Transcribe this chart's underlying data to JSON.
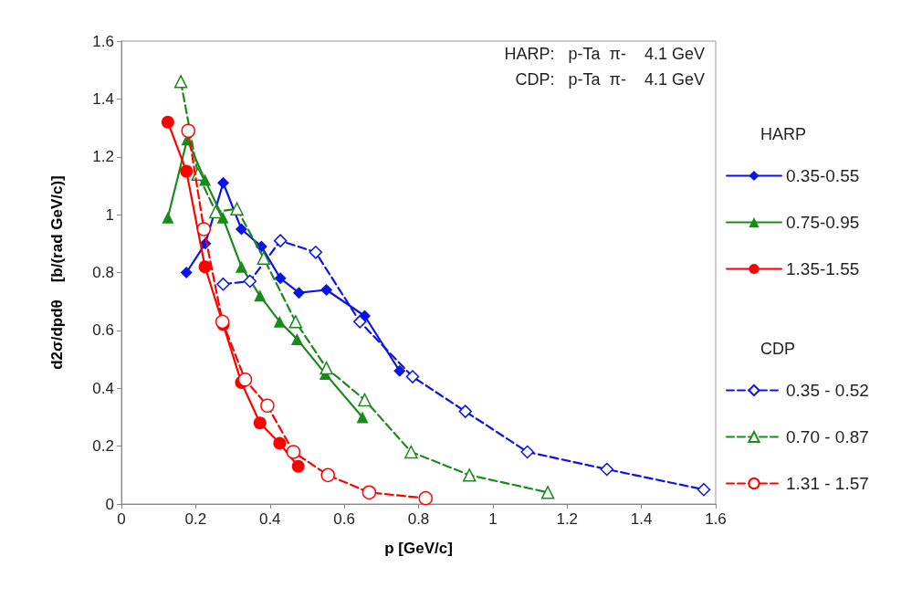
{
  "chart_data": {
    "type": "line",
    "xlabel": "p [GeV/c]",
    "ylabel": "d2σ/dpdθ    [b/(rad GeV/c)]",
    "annotations": [
      "HARP:   p-Ta  π-    4.1 GeV",
      "CDP:   p-Ta  π-    4.1 GeV",
      "HARP",
      "CDP"
    ],
    "xlim": [
      0,
      1.6
    ],
    "xticks": [
      0,
      0.2,
      0.4,
      0.6,
      0.8,
      1,
      1.2,
      1.4,
      1.6
    ],
    "ylim": [
      0,
      1.6
    ],
    "yticks": [
      0,
      0.2,
      0.4,
      0.6,
      0.8,
      1,
      1.2,
      1.4,
      1.6
    ],
    "grid": false,
    "legend": "right",
    "series": [
      {
        "name": "0.35-0.55",
        "color": "#0a14e6",
        "marker": "diamond",
        "line_style": "solid",
        "x": [
          0.175,
          0.226,
          0.274,
          0.323,
          0.377,
          0.428,
          0.478,
          0.552,
          0.655,
          0.749
        ],
        "values": [
          0.8,
          0.9,
          1.11,
          0.95,
          0.89,
          0.78,
          0.73,
          0.74,
          0.65,
          0.46
        ]
      },
      {
        "name": "0.75-0.95",
        "color": "#1a8a1a",
        "marker": "triangle",
        "line_style": "solid",
        "x": [
          0.125,
          0.177,
          0.225,
          0.273,
          0.323,
          0.373,
          0.426,
          0.473,
          0.549,
          0.649
        ],
        "values": [
          0.99,
          1.26,
          1.12,
          0.99,
          0.82,
          0.72,
          0.63,
          0.57,
          0.45,
          0.3
        ]
      },
      {
        "name": "1.35-1.55",
        "color": "#ff0000",
        "marker": "circle",
        "line_style": "solid",
        "x": [
          0.125,
          0.175,
          0.225,
          0.274,
          0.323,
          0.373,
          0.426,
          0.476
        ],
        "values": [
          1.32,
          1.15,
          0.82,
          0.62,
          0.42,
          0.28,
          0.21,
          0.13
        ]
      },
      {
        "name": "0.35 - 0.52",
        "color": "#0a14e6",
        "marker": "diamond",
        "line_style": "dashed",
        "x": [
          0.274,
          0.346,
          0.428,
          0.523,
          0.642,
          0.784,
          0.926,
          1.093,
          1.307,
          1.568
        ],
        "values": [
          0.76,
          0.77,
          0.91,
          0.87,
          0.63,
          0.44,
          0.32,
          0.18,
          0.12,
          0.05
        ]
      },
      {
        "name": "0.70 - 0.87",
        "color": "#1a8a1a",
        "marker": "triangle",
        "line_style": "dashed",
        "x": [
          0.16,
          0.206,
          0.254,
          0.311,
          0.383,
          0.469,
          0.552,
          0.655,
          0.78,
          0.937,
          1.148
        ],
        "values": [
          1.46,
          1.14,
          1.01,
          1.02,
          0.85,
          0.63,
          0.47,
          0.36,
          0.18,
          0.1,
          0.04
        ]
      },
      {
        "name": "1.31 - 1.57",
        "color": "#ff0000",
        "marker": "circle",
        "line_style": "dashed",
        "x": [
          0.18,
          0.222,
          0.272,
          0.333,
          0.393,
          0.463,
          0.556,
          0.667,
          0.819
        ],
        "values": [
          1.29,
          0.95,
          0.63,
          0.43,
          0.34,
          0.18,
          0.1,
          0.04,
          0.02
        ]
      }
    ]
  }
}
